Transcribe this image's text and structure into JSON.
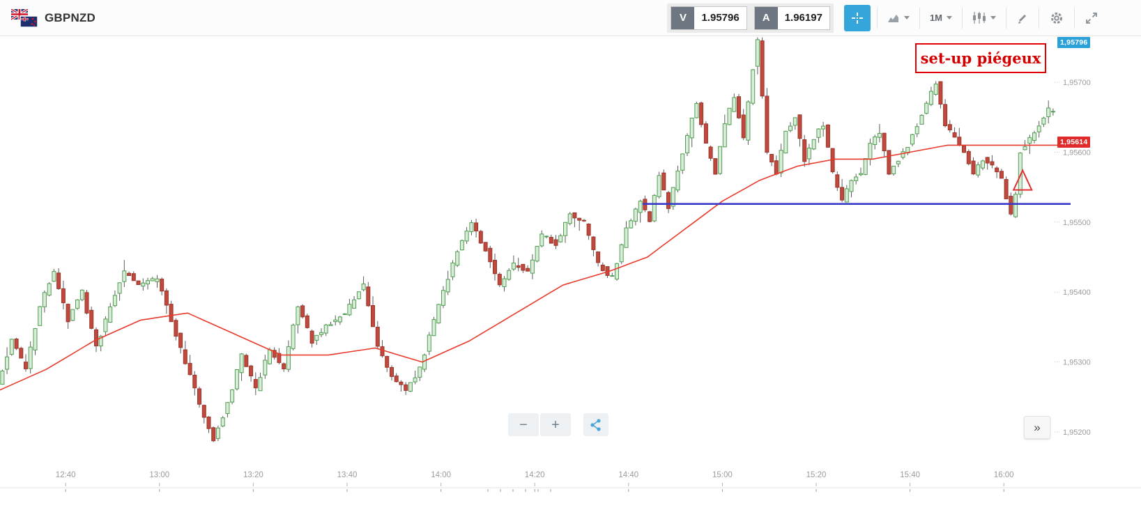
{
  "header": {
    "symbol": "GBPNZD",
    "flag_icon": "gb-nz-flag-icon",
    "sell_button": {
      "label": "V",
      "price": "1.95796"
    },
    "buy_button": {
      "label": "A",
      "price": "1.96197"
    },
    "toolbar": {
      "timeframe": "1M"
    }
  },
  "controls": {
    "zoom_out": "−",
    "zoom_in": "+",
    "collapse": "»"
  },
  "chart_data": {
    "type": "candlestick",
    "symbol": "GBPNZD",
    "interval": "1M",
    "x_axis": {
      "time_start": "12:26",
      "time_end": "16:12",
      "tick_labels": [
        "12:40",
        "13:00",
        "13:20",
        "13:40",
        "14:00",
        "14:20",
        "14:40",
        "15:00",
        "15:20",
        "15:40",
        "16:00"
      ]
    },
    "y_axis": {
      "tick_labels": [
        "1,95700",
        "1,95600",
        "1,95500",
        "1,95400",
        "1,95300",
        "1,95200"
      ],
      "tick_values": [
        1.957,
        1.956,
        1.955,
        1.954,
        1.953,
        1.952
      ]
    },
    "sell_price": 1.95796,
    "buy_price": 1.96197,
    "last_price": 1.95614,
    "price_path_anchors": [
      [
        "12:26",
        1.9527
      ],
      [
        "12:29",
        1.9533
      ],
      [
        "12:32",
        1.9529
      ],
      [
        "12:35",
        1.9538
      ],
      [
        "12:38",
        1.9543
      ],
      [
        "12:41",
        1.9536
      ],
      [
        "12:44",
        1.954
      ],
      [
        "12:47",
        1.9532
      ],
      [
        "12:50",
        1.9538
      ],
      [
        "12:53",
        1.9543
      ],
      [
        "12:56",
        1.9541
      ],
      [
        "13:00",
        1.9542
      ],
      [
        "13:03",
        1.9536
      ],
      [
        "13:06",
        1.953
      ],
      [
        "13:09",
        1.9524
      ],
      [
        "13:12",
        1.9519
      ],
      [
        "13:15",
        1.9524
      ],
      [
        "13:18",
        1.9531
      ],
      [
        "13:21",
        1.9526
      ],
      [
        "13:24",
        1.9532
      ],
      [
        "13:27",
        1.9529
      ],
      [
        "13:30",
        1.9538
      ],
      [
        "13:33",
        1.9533
      ],
      [
        "13:36",
        1.9535
      ],
      [
        "13:40",
        1.9537
      ],
      [
        "13:44",
        1.9541
      ],
      [
        "13:47",
        1.9532
      ],
      [
        "13:50",
        1.9528
      ],
      [
        "13:53",
        1.9526
      ],
      [
        "13:56",
        1.9529
      ],
      [
        "14:00",
        1.9538
      ],
      [
        "14:04",
        1.9546
      ],
      [
        "14:07",
        1.955
      ],
      [
        "14:10",
        1.9546
      ],
      [
        "14:13",
        1.9541
      ],
      [
        "14:16",
        1.9544
      ],
      [
        "14:19",
        1.9543
      ],
      [
        "14:22",
        1.9548
      ],
      [
        "14:25",
        1.9547
      ],
      [
        "14:28",
        1.9551
      ],
      [
        "14:31",
        1.955
      ],
      [
        "14:34",
        1.9544
      ],
      [
        "14:37",
        1.9542
      ],
      [
        "14:40",
        1.9549
      ],
      [
        "14:43",
        1.9553
      ],
      [
        "14:45",
        1.955
      ],
      [
        "14:47",
        1.9557
      ],
      [
        "14:49",
        1.9552
      ],
      [
        "14:52",
        1.956
      ],
      [
        "14:55",
        1.9567
      ],
      [
        "14:57",
        1.9561
      ],
      [
        "14:59",
        1.9557
      ],
      [
        "15:01",
        1.9564
      ],
      [
        "15:03",
        1.9568
      ],
      [
        "15:05",
        1.9562
      ],
      [
        "15:07",
        1.9572
      ],
      [
        "15:08",
        1.9576
      ],
      [
        "15:10",
        1.956
      ],
      [
        "15:12",
        1.9557
      ],
      [
        "15:14",
        1.9563
      ],
      [
        "15:16",
        1.9565
      ],
      [
        "15:18",
        1.9559
      ],
      [
        "15:20",
        1.9562
      ],
      [
        "15:22",
        1.9564
      ],
      [
        "15:24",
        1.9557
      ],
      [
        "15:26",
        1.9553
      ],
      [
        "15:28",
        1.9556
      ],
      [
        "15:30",
        1.9557
      ],
      [
        "15:32",
        1.9561
      ],
      [
        "15:34",
        1.9563
      ],
      [
        "15:36",
        1.9557
      ],
      [
        "15:38",
        1.9559
      ],
      [
        "15:40",
        1.9561
      ],
      [
        "15:42",
        1.9564
      ],
      [
        "15:44",
        1.9567
      ],
      [
        "15:46",
        1.957
      ],
      [
        "15:48",
        1.9564
      ],
      [
        "15:50",
        1.9562
      ],
      [
        "15:52",
        1.956
      ],
      [
        "15:54",
        1.9557
      ],
      [
        "15:56",
        1.9559
      ],
      [
        "15:58",
        1.9558
      ],
      [
        "16:00",
        1.9556
      ],
      [
        "16:02",
        1.9551
      ],
      [
        "16:03",
        1.9554
      ],
      [
        "16:04",
        1.956
      ],
      [
        "16:06",
        1.9562
      ],
      [
        "16:08",
        1.9564
      ],
      [
        "16:10",
        1.9566
      ]
    ],
    "ma_anchors": [
      [
        "12:26",
        1.9526
      ],
      [
        "12:36",
        1.9529
      ],
      [
        "12:46",
        1.9533
      ],
      [
        "12:56",
        1.9536
      ],
      [
        "13:06",
        1.9537
      ],
      [
        "13:16",
        1.9534
      ],
      [
        "13:26",
        1.9531
      ],
      [
        "13:36",
        1.9531
      ],
      [
        "13:46",
        1.9532
      ],
      [
        "13:56",
        1.953
      ],
      [
        "14:06",
        1.9533
      ],
      [
        "14:16",
        1.9537
      ],
      [
        "14:26",
        1.9541
      ],
      [
        "14:36",
        1.9543
      ],
      [
        "14:44",
        1.9545
      ],
      [
        "14:52",
        1.9549
      ],
      [
        "15:00",
        1.9553
      ],
      [
        "15:08",
        1.9556
      ],
      [
        "15:16",
        1.9558
      ],
      [
        "15:24",
        1.9559
      ],
      [
        "15:32",
        1.9559
      ],
      [
        "15:40",
        1.956
      ],
      [
        "15:48",
        1.9561
      ],
      [
        "15:56",
        1.9561
      ],
      [
        "16:04",
        1.9561
      ],
      [
        "16:12",
        1.9561
      ]
    ],
    "overlays": {
      "support_line": {
        "value": 1.95526,
        "time_start": "14:43",
        "color": "#3a3ac8"
      },
      "triangle_marker": {
        "time": "16:04",
        "base_value": 1.95546,
        "apex_value": 1.95574,
        "color": "#e03030"
      },
      "annotation_box": {
        "text": "set-up piégeux",
        "text_color": "#d40000",
        "border_color": "#e40000"
      }
    },
    "badges": {
      "sell_marker": {
        "text": "1,95796",
        "color": "#2aa2d9"
      },
      "last_price_marker": {
        "text": "1,95614",
        "color": "#e12b2b"
      }
    },
    "colors": {
      "up_fill": "#d9ecd9",
      "up_stroke": "#4f9d4f",
      "down_fill": "#c0483c",
      "down_stroke": "#9a352b",
      "wick": "#5a5a5a",
      "ma": "#e8392b"
    }
  }
}
